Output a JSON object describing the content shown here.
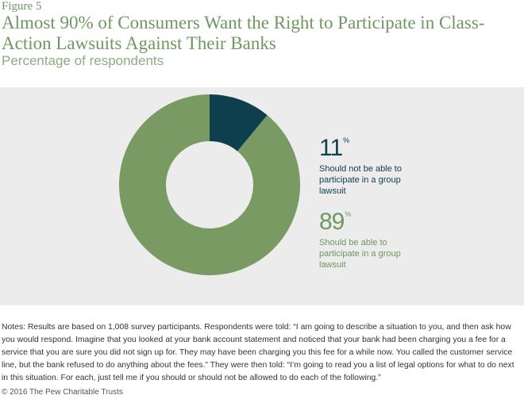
{
  "figure_label": "Figure 5",
  "title": "Almost 90% of Consumers Want the Right to Participate in Class-Action Lawsuits Against Their Banks",
  "subtitle": "Percentage of respondents",
  "chart_data": {
    "type": "pie",
    "donut": true,
    "title": "Almost 90% of Consumers Want the Right to Participate in Class-Action Lawsuits Against Their Banks",
    "subtitle": "Percentage of respondents",
    "categories": [
      "Should not be able to participate in a group lawsuit",
      "Should be able to participate in a group lawsuit"
    ],
    "values": [
      11,
      89
    ],
    "unit": "%",
    "colors": [
      "#0e3f4d",
      "#7a9a64"
    ],
    "legend_placement": "right"
  },
  "legend": [
    {
      "value": "11",
      "unit": "%",
      "label": "Should not be able to participate in a group lawsuit",
      "color": "#0e3f4d"
    },
    {
      "value": "89",
      "unit": "%",
      "label": "Should be able to participate in a group lawsuit",
      "color": "#6f9760"
    }
  ],
  "notes": "Notes: Results are based on 1,008 survey participants. Respondents were told: “I am going to describe a situation to you, and then ask how you would respond. Imagine that you looked at your bank account statement and noticed that your bank had been charging you a fee for a service that you are sure you did not sign up for. They may have been charging you this fee for a while now. You called the customer service line, but the bank refused to do anything about the fees.” They were then told: “I’m going to read you a list of legal options for what to do next in this situation. For each, just tell me if you should or should not be allowed to do each of the following.”",
  "copyright": "© 2016 The Pew Charitable Trusts"
}
